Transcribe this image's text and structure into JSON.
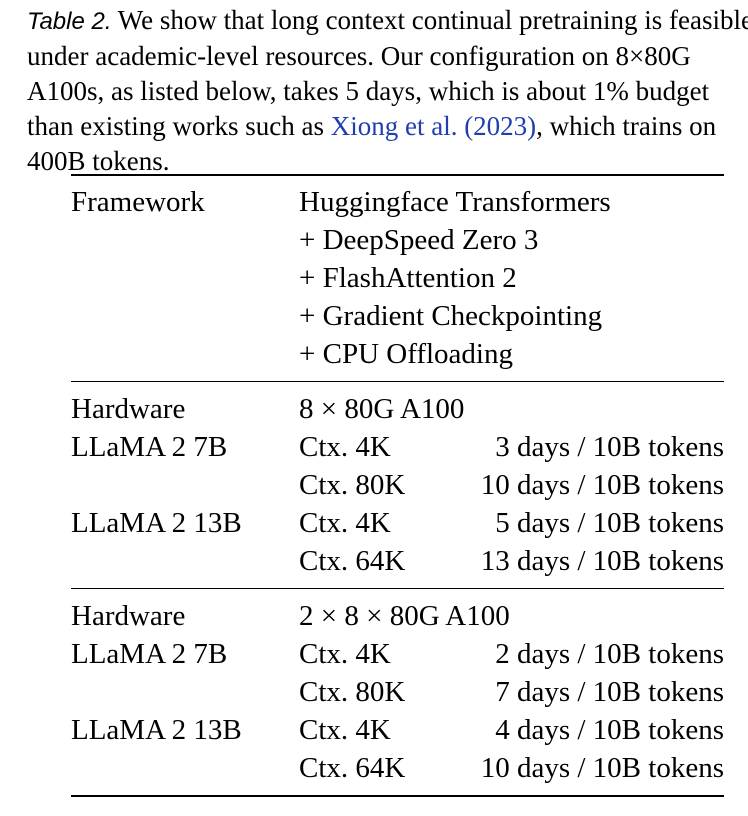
{
  "caption": {
    "label": "Table 2.",
    "line1": " We show that long context continual pretraining is feasible",
    "line2": "under academic-level resources.  Our configuration on 8×80G",
    "line3": "A100s, as listed below, takes 5 days, which is about 1% budget",
    "line4_pre": "than existing works such as ",
    "citation": "Xiong et al. (2023)",
    "line4_post": ", which trains on",
    "line5": "400B tokens.",
    "link_color": "#1f3fb0"
  },
  "table": {
    "framework": {
      "label": "Framework",
      "lines": [
        "Huggingface Transformers",
        "+ DeepSpeed Zero 3",
        "+ FlashAttention 2",
        "+ Gradient Checkpointing",
        "+ CPU Offloading"
      ]
    },
    "sections": [
      {
        "hardware_label": "Hardware",
        "hardware": "8 × 80G A100",
        "rows": [
          {
            "model": "LLaMA 2 7B",
            "ctx": "Ctx. 4K",
            "time": "3 days / 10B tokens"
          },
          {
            "model": "",
            "ctx": "Ctx. 80K",
            "time": "10 days / 10B tokens"
          },
          {
            "model": "LLaMA 2 13B",
            "ctx": "Ctx. 4K",
            "time": "5 days / 10B tokens"
          },
          {
            "model": "",
            "ctx": "Ctx. 64K",
            "time": "13 days / 10B tokens"
          }
        ]
      },
      {
        "hardware_label": "Hardware",
        "hardware": "2 × 8 × 80G A100",
        "rows": [
          {
            "model": "LLaMA 2 7B",
            "ctx": "Ctx. 4K",
            "time": "2 days / 10B tokens"
          },
          {
            "model": "",
            "ctx": "Ctx. 80K",
            "time": "7 days / 10B tokens"
          },
          {
            "model": "LLaMA 2 13B",
            "ctx": "Ctx. 4K",
            "time": "4 days / 10B tokens"
          },
          {
            "model": "",
            "ctx": "Ctx. 64K",
            "time": "10 days / 10B tokens"
          }
        ]
      }
    ]
  }
}
